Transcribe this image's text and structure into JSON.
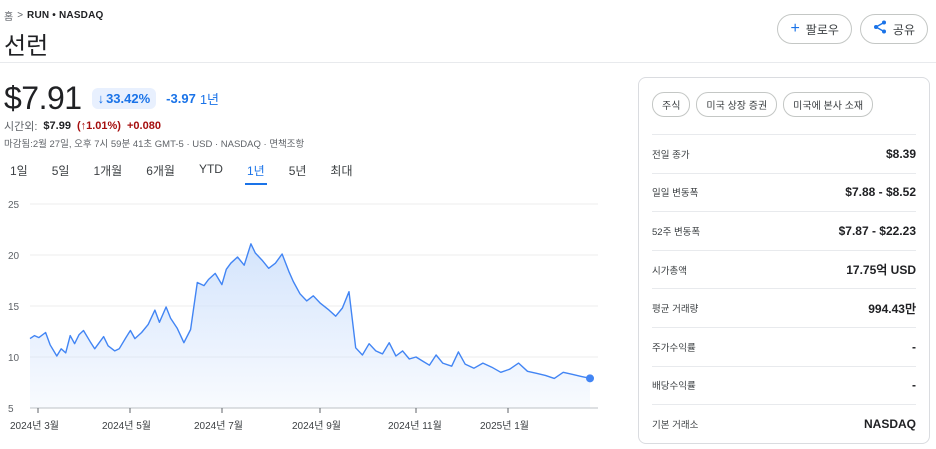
{
  "breadcrumb": {
    "home": "홈",
    "separator": ">",
    "ticker": "RUN • NASDAQ"
  },
  "title": "선런",
  "actions": {
    "follow": {
      "icon": "plus-icon",
      "label": "팔로우"
    },
    "share": {
      "icon": "share-icon",
      "label": "공유"
    }
  },
  "quote": {
    "price": "$7.91",
    "change_pct": "33.42%",
    "change_abs": "-3.97",
    "period": "1년"
  },
  "after_hours": {
    "label": "시간외:",
    "price": "$7.99",
    "pct": "(↑1.01%)",
    "abs": "+0.080"
  },
  "close_info": "마감됨:2월 27일, 오후 7시 59분 41초 GMT-5 · USD · NASDAQ · 면책조항",
  "range_tabs": [
    "1일",
    "5일",
    "1개월",
    "6개월",
    "YTD",
    "1년",
    "5년",
    "최대"
  ],
  "active_range": "1년",
  "chart_data": {
    "type": "area",
    "y_ticks": [
      "25",
      "20",
      "15",
      "10",
      "5"
    ],
    "x_ticks": [
      "2024년 3월",
      "2024년 5월",
      "2024년 7월",
      "2024년 9월",
      "2024년 11월",
      "2025년 1월"
    ],
    "ylim": [
      5,
      25
    ],
    "line_color": "#4285f4",
    "fill_color": "#d2e3fc",
    "x": [
      0,
      2,
      4,
      7,
      9,
      12,
      14,
      16,
      18,
      20,
      22,
      24,
      27,
      29,
      31,
      33,
      35,
      38,
      40,
      43,
      45,
      47,
      50,
      53,
      56,
      58,
      61,
      63,
      66,
      69,
      72,
      75,
      78,
      80,
      83,
      86,
      88,
      90,
      93,
      96,
      99,
      101,
      104,
      107,
      110,
      113,
      116,
      118,
      121,
      124,
      127,
      130,
      134,
      137,
      140,
      143,
      146,
      149,
      152,
      155,
      158,
      161,
      164,
      167,
      170,
      173,
      176,
      179,
      182,
      185,
      189,
      192,
      195,
      199,
      203,
      207,
      211,
      215,
      219,
      223,
      227,
      231,
      235,
      239,
      243,
      247,
      251
    ],
    "values": [
      11.8,
      12.1,
      11.9,
      12.4,
      11.2,
      10.1,
      10.8,
      10.4,
      12.1,
      11.3,
      12.2,
      12.6,
      11.5,
      10.8,
      11.4,
      12.0,
      11.1,
      10.6,
      10.8,
      11.9,
      12.6,
      11.8,
      12.4,
      13.2,
      14.6,
      13.4,
      14.9,
      13.8,
      12.8,
      11.4,
      12.7,
      17.3,
      17.0,
      17.6,
      18.2,
      17.1,
      18.6,
      19.2,
      19.8,
      19.0,
      21.1,
      20.2,
      19.5,
      18.7,
      19.2,
      20.1,
      18.4,
      17.4,
      16.2,
      15.5,
      16.0,
      15.3,
      14.6,
      14.0,
      14.8,
      16.4,
      10.9,
      10.2,
      11.3,
      10.6,
      10.3,
      11.4,
      10.1,
      10.6,
      9.8,
      10.0,
      9.6,
      9.2,
      10.2,
      9.4,
      9.1,
      10.5,
      9.3,
      8.9,
      9.4,
      9.0,
      8.5,
      8.8,
      9.4,
      8.6,
      8.4,
      8.2,
      7.9,
      8.5,
      8.3,
      8.1,
      7.91
    ]
  },
  "panel": {
    "chips": [
      "주식",
      "미국 상장 증권",
      "미국에 본사 소재"
    ],
    "stats": [
      {
        "label": "전일 종가",
        "value": "$8.39"
      },
      {
        "label": "일일 변동폭",
        "value": "$7.88 - $8.52"
      },
      {
        "label": "52주 변동폭",
        "value": "$7.87 - $22.23"
      },
      {
        "label": "시가총액",
        "value": "17.75억 USD"
      },
      {
        "label": "평균 거래량",
        "value": "994.43만"
      },
      {
        "label": "주가수익률",
        "value": "-"
      },
      {
        "label": "배당수익률",
        "value": "-"
      },
      {
        "label": "기본 거래소",
        "value": "NASDAQ"
      }
    ]
  }
}
